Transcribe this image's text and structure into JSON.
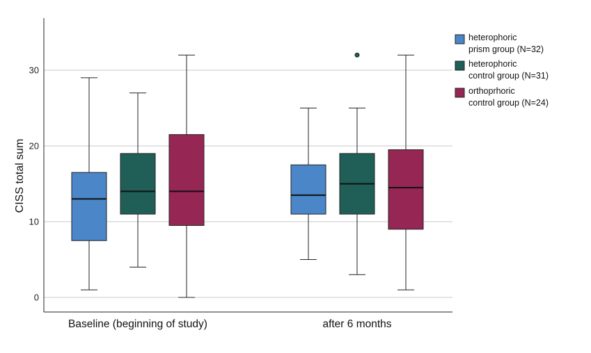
{
  "chart_data": {
    "type": "boxplot",
    "title": "",
    "xlabel": "",
    "ylabel": "CISS total sum",
    "ylim": [
      -1.8,
      37.5
    ],
    "yticks": [
      0,
      10,
      20,
      30
    ],
    "grid": "horizontal",
    "legend_position": "top-right",
    "categories": [
      "Baseline (beginning of study)",
      "after 6 months"
    ],
    "series": [
      {
        "name_lines": [
          "heterophoric",
          "prism group  (N=32)"
        ],
        "color": "#4a86c8",
        "stats": [
          {
            "min": 1,
            "q1": 7.5,
            "median": 13,
            "q3": 16.5,
            "max": 29,
            "outliers": []
          },
          {
            "min": 5,
            "q1": 11,
            "median": 13.5,
            "q3": 17.5,
            "max": 25,
            "outliers": []
          }
        ]
      },
      {
        "name_lines": [
          "heterophoric",
          "control group  (N=31)"
        ],
        "color": "#1f5f58",
        "stats": [
          {
            "min": 4,
            "q1": 11,
            "median": 14,
            "q3": 19,
            "max": 27,
            "outliers": []
          },
          {
            "min": 3,
            "q1": 11,
            "median": 15,
            "q3": 19,
            "max": 25,
            "outliers": [
              32
            ]
          }
        ]
      },
      {
        "name_lines": [
          "orthoprhoric",
          "control group  (N=24)"
        ],
        "color": "#962654",
        "stats": [
          {
            "min": 0,
            "q1": 9.5,
            "median": 14,
            "q3": 21.5,
            "max": 32,
            "outliers": []
          },
          {
            "min": 1,
            "q1": 9,
            "median": 14.5,
            "q3": 19.5,
            "max": 32,
            "outliers": []
          }
        ]
      }
    ]
  }
}
